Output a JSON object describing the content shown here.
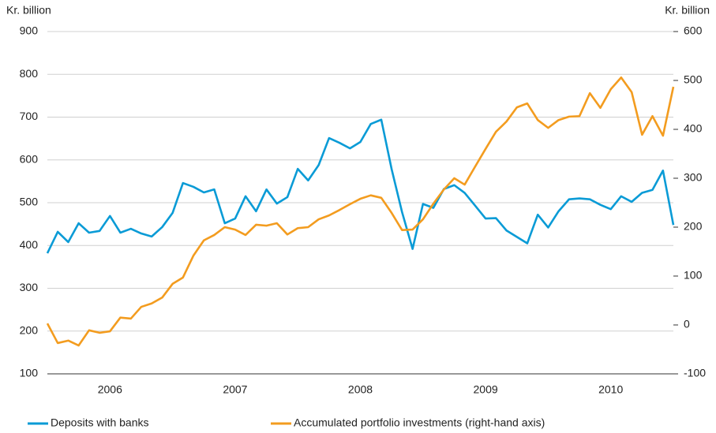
{
  "chart_data": {
    "type": "line",
    "y_label": "Kr. billion",
    "y2_label": "Kr. billion",
    "x": [
      2006,
      2006.083,
      2006.167,
      2006.25,
      2006.333,
      2006.417,
      2006.5,
      2006.583,
      2006.667,
      2006.75,
      2006.833,
      2006.917,
      2007,
      2007.083,
      2007.167,
      2007.25,
      2007.333,
      2007.417,
      2007.5,
      2007.583,
      2007.667,
      2007.75,
      2007.833,
      2007.917,
      2008,
      2008.083,
      2008.167,
      2008.25,
      2008.333,
      2008.417,
      2008.5,
      2008.583,
      2008.667,
      2008.75,
      2008.833,
      2008.917,
      2009,
      2009.083,
      2009.167,
      2009.25,
      2009.333,
      2009.417,
      2009.5,
      2009.583,
      2009.667,
      2009.75,
      2009.833,
      2009.917,
      2010,
      2010.083,
      2010.167,
      2010.25,
      2010.333,
      2010.417,
      2010.5,
      2010.583,
      2010.667,
      2010.75,
      2010.833,
      2010.917,
      2011
    ],
    "series": [
      {
        "name": "Deposits with banks",
        "color": "#0a9bd6",
        "values": [
          382,
          432,
          408,
          452,
          430,
          434,
          469,
          430,
          439,
          428,
          421,
          443,
          476,
          546,
          537,
          524,
          531,
          452,
          463,
          515,
          480,
          531,
          498,
          513,
          579,
          552,
          588,
          651,
          640,
          627,
          642,
          684,
          694,
          578,
          478,
          392,
          497,
          488,
          532,
          541,
          523,
          493,
          463,
          464,
          435,
          420,
          405,
          472,
          442,
          480,
          508,
          510,
          508,
          495,
          485,
          515,
          502,
          523,
          530,
          575,
          448
        ]
      },
      {
        "name": "Accumulated portfolio investments (right-hand axis)",
        "color": "#f39c1f",
        "axis": "y2",
        "values": [
          3,
          -37,
          -32,
          -42,
          -11,
          -16,
          -13,
          15,
          13,
          37,
          44,
          56,
          84,
          97,
          142,
          173,
          184,
          200,
          195,
          184,
          205,
          203,
          208,
          185,
          198,
          200,
          216,
          224,
          235,
          247,
          258,
          265,
          260,
          229,
          194,
          195,
          216,
          248,
          277,
          300,
          287,
          324,
          360,
          395,
          416,
          445,
          453,
          419,
          403,
          419,
          426,
          427,
          474,
          444,
          482,
          506,
          476,
          389,
          427,
          387,
          487
        ]
      }
    ],
    "xlim": [
      2006,
      2011
    ],
    "xticks": [
      {
        "value": 2006.5,
        "label": "2006"
      },
      {
        "value": 2007.5,
        "label": "2007"
      },
      {
        "value": 2008.5,
        "label": "2008"
      },
      {
        "value": 2009.5,
        "label": "2009"
      },
      {
        "value": 2010.5,
        "label": "2010"
      }
    ],
    "ylim": [
      100,
      900
    ],
    "yticks": [
      100,
      200,
      300,
      400,
      500,
      600,
      700,
      800,
      900
    ],
    "y2lim": [
      -100,
      600
    ],
    "y2ticks": [
      -100,
      0,
      100,
      200,
      300,
      400,
      500,
      600
    ],
    "grid": true,
    "legend": "bottom"
  }
}
